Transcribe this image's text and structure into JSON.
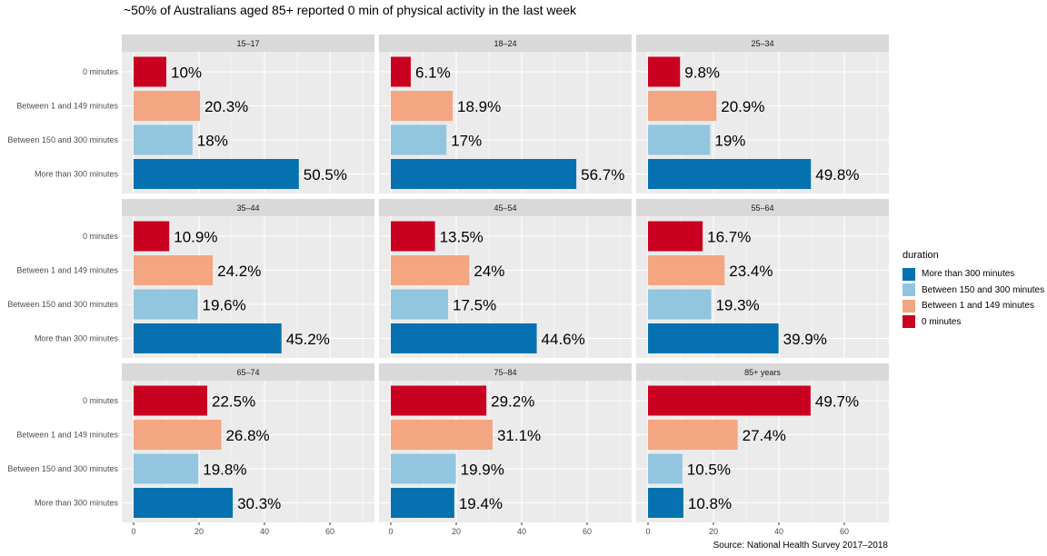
{
  "title": "~50% of Australians aged 85+ reported 0 min of physical activity in the last week",
  "source": "Source: National Health Survey 2017–2018",
  "legend": {
    "title": "duration",
    "items": [
      {
        "label": "More than 300 minutes",
        "color": "#0571b0"
      },
      {
        "label": "Between 150 and 300 minutes",
        "color": "#92c5de"
      },
      {
        "label": "Between 1 and 149 minutes",
        "color": "#f4a582"
      },
      {
        "label": "0 minutes",
        "color": "#ca0020"
      }
    ]
  },
  "chart_data": {
    "type": "bar",
    "orientation": "horizontal",
    "facet_by": "age group",
    "categories": [
      "0 minutes",
      "Between 1 and 149 minutes",
      "Between 150 and 300 minutes",
      "More than 300 minutes"
    ],
    "category_colors": [
      "#ca0020",
      "#f4a582",
      "#92c5de",
      "#0571b0"
    ],
    "xlim": [
      0,
      70
    ],
    "xticks": [
      0,
      20,
      40,
      60
    ],
    "grid": true,
    "legend_position": "right",
    "panels": [
      {
        "name": "15–17",
        "values": [
          10,
          20.3,
          18,
          50.5
        ],
        "labels": [
          "10%",
          "20.3%",
          "18%",
          "50.5%"
        ]
      },
      {
        "name": "18–24",
        "values": [
          6.1,
          18.9,
          17,
          56.7
        ],
        "labels": [
          "6.1%",
          "18.9%",
          "17%",
          "56.7%"
        ]
      },
      {
        "name": "25–34",
        "values": [
          9.8,
          20.9,
          19,
          49.8
        ],
        "labels": [
          "9.8%",
          "20.9%",
          "19%",
          "49.8%"
        ]
      },
      {
        "name": "35–44",
        "values": [
          10.9,
          24.2,
          19.6,
          45.2
        ],
        "labels": [
          "10.9%",
          "24.2%",
          "19.6%",
          "45.2%"
        ]
      },
      {
        "name": "45–54",
        "values": [
          13.5,
          24,
          17.5,
          44.6
        ],
        "labels": [
          "13.5%",
          "24%",
          "17.5%",
          "44.6%"
        ]
      },
      {
        "name": "55–64",
        "values": [
          16.7,
          23.4,
          19.3,
          39.9
        ],
        "labels": [
          "16.7%",
          "23.4%",
          "19.3%",
          "39.9%"
        ]
      },
      {
        "name": "65–74",
        "values": [
          22.5,
          26.8,
          19.8,
          30.3
        ],
        "labels": [
          "22.5%",
          "26.8%",
          "19.8%",
          "30.3%"
        ]
      },
      {
        "name": "75–84",
        "values": [
          29.2,
          31.1,
          19.9,
          19.4
        ],
        "labels": [
          "29.2%",
          "31.1%",
          "19.9%",
          "19.4%"
        ]
      },
      {
        "name": "85+ years",
        "values": [
          49.7,
          27.4,
          10.5,
          10.8
        ],
        "labels": [
          "49.7%",
          "27.4%",
          "10.5%",
          "10.8%"
        ]
      }
    ]
  }
}
